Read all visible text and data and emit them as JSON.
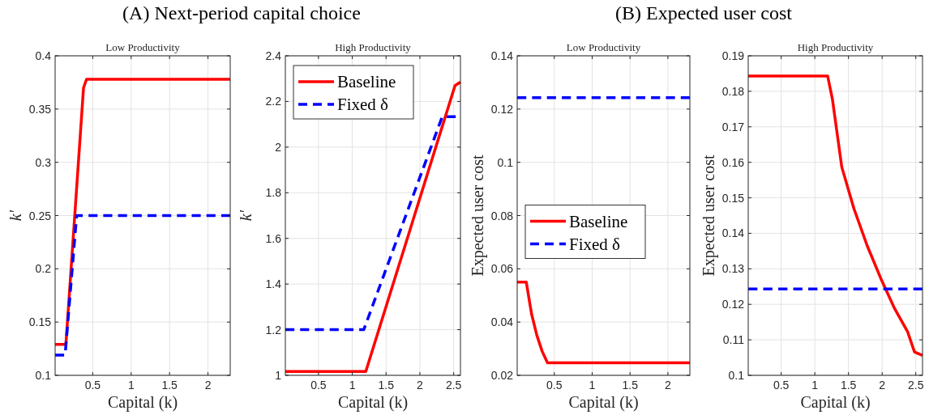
{
  "chart_data": [
    {
      "type": "line",
      "title": "Low Productivity",
      "annotations": [
        "(A) Next-period capital choice"
      ],
      "xlabel": "Capital (k)",
      "ylabel": "k′",
      "xlim": [
        0.01,
        2.29
      ],
      "xticks": [
        0.5,
        1,
        1.5,
        2
      ],
      "ylim": [
        0.1,
        0.4
      ],
      "yticks": [
        0.1,
        0.15,
        0.2,
        0.25,
        0.3,
        0.35,
        0.4
      ],
      "grid": true,
      "legend": false,
      "series": [
        {
          "color": "#ff0000",
          "line_style": "solid",
          "x": [
            0.01,
            0.15,
            0.38,
            0.42,
            2.29
          ],
          "values": [
            0.129,
            0.129,
            0.37,
            0.378,
            0.378
          ]
        },
        {
          "color": "#0000ff",
          "line_style": "dashed",
          "x": [
            0.01,
            0.14,
            0.29,
            2.29
          ],
          "values": [
            0.119,
            0.119,
            0.25,
            0.25
          ]
        }
      ]
    },
    {
      "type": "line",
      "title": "High Productivity",
      "xlabel": "Capital (k)",
      "ylabel": "k′",
      "xlim": [
        0.01,
        2.6
      ],
      "xticks": [
        0.5,
        1,
        1.5,
        2,
        2.5
      ],
      "ylim": [
        1,
        2.4
      ],
      "yticks": [
        1,
        1.2,
        1.4,
        1.6,
        1.8,
        2,
        2.2,
        2.4
      ],
      "grid": true,
      "legend": "top left",
      "series": [
        {
          "name": "Baseline",
          "color": "#ff0000",
          "line_style": "solid",
          "x": [
            0.01,
            1.2,
            2.52,
            2.6
          ],
          "values": [
            1.017,
            1.017,
            2.27,
            2.285
          ]
        },
        {
          "name": "Fixed δ",
          "color": "#0000ff",
          "line_style": "dashed",
          "x": [
            0.01,
            1.17,
            2.33,
            2.53
          ],
          "values": [
            1.2,
            1.2,
            2.133,
            2.133
          ]
        }
      ]
    },
    {
      "type": "line",
      "title": "Low Productivity",
      "annotations": [
        "(B) Expected user cost"
      ],
      "xlabel": "Capital (k)",
      "ylabel": "Expected user cost",
      "xlim": [
        0.01,
        2.29
      ],
      "xticks": [
        0.5,
        1,
        1.5,
        2
      ],
      "ylim": [
        0.02,
        0.14
      ],
      "yticks": [
        0.02,
        0.04,
        0.06,
        0.08,
        0.1,
        0.12,
        0.14
      ],
      "grid": true,
      "legend": "left",
      "series": [
        {
          "name": "Baseline",
          "color": "#ff0000",
          "line_style": "solid",
          "x": [
            0.01,
            0.13,
            0.2,
            0.27,
            0.34,
            0.41,
            2.29
          ],
          "values": [
            0.055,
            0.055,
            0.043,
            0.035,
            0.029,
            0.0247,
            0.0247
          ]
        },
        {
          "name": "Fixed δ",
          "color": "#0000ff",
          "line_style": "dashed",
          "x": [
            0.01,
            2.29
          ],
          "values": [
            0.1243,
            0.1243
          ]
        }
      ]
    },
    {
      "type": "line",
      "title": "High Productivity",
      "xlabel": "Capital (k)",
      "ylabel": "Expected user cost",
      "xlim": [
        0.01,
        2.6
      ],
      "xticks": [
        0.5,
        1,
        1.5,
        2,
        2.5
      ],
      "ylim": [
        0.1,
        0.19
      ],
      "yticks": [
        0.1,
        0.11,
        0.12,
        0.13,
        0.14,
        0.15,
        0.16,
        0.17,
        0.18,
        0.19
      ],
      "grid": true,
      "legend": false,
      "series": [
        {
          "color": "#ff0000",
          "line_style": "solid",
          "x": [
            0.01,
            1.19,
            1.26,
            1.4,
            1.58,
            1.78,
            1.98,
            2.18,
            2.38,
            2.48,
            2.6
          ],
          "values": [
            0.1843,
            0.1843,
            0.1779,
            0.1587,
            0.147,
            0.1364,
            0.1273,
            0.119,
            0.1122,
            0.1066,
            0.1056
          ]
        },
        {
          "color": "#0000ff",
          "line_style": "dashed",
          "x": [
            0.01,
            2.6
          ],
          "values": [
            0.1243,
            0.1243
          ]
        }
      ]
    }
  ]
}
